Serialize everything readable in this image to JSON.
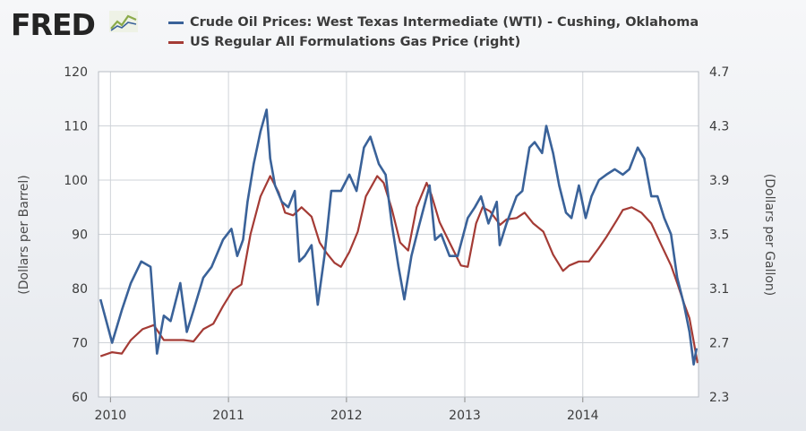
{
  "brand": {
    "logo_text": "FRED",
    "logo_icon": "line-chart-icon"
  },
  "colors": {
    "wti": "#3a6299",
    "gas": "#a43b35",
    "grid": "#cfd3d8",
    "plot_bg": "#ffffff"
  },
  "chart_data": {
    "type": "line",
    "series": [
      {
        "name": "Crude Oil Prices: West Texas Intermediate (WTI) - Cushing, Oklahoma",
        "axis": "left",
        "x": [
          "2009-12-01",
          "2010-01-06",
          "2010-02-05",
          "2010-03-05",
          "2010-04-06",
          "2010-05-05",
          "2010-05-25",
          "2010-06-15",
          "2010-07-06",
          "2010-08-05",
          "2010-08-25",
          "2010-09-15",
          "2010-10-15",
          "2010-11-10",
          "2010-12-15",
          "2011-01-10",
          "2011-01-28",
          "2011-02-15",
          "2011-03-01",
          "2011-03-20",
          "2011-04-10",
          "2011-04-29",
          "2011-05-10",
          "2011-05-25",
          "2011-06-15",
          "2011-07-05",
          "2011-07-25",
          "2011-08-08",
          "2011-08-25",
          "2011-09-15",
          "2011-10-04",
          "2011-10-25",
          "2011-11-15",
          "2011-12-15",
          "2012-01-10",
          "2012-02-01",
          "2012-02-24",
          "2012-03-15",
          "2012-04-10",
          "2012-05-01",
          "2012-05-20",
          "2012-06-10",
          "2012-06-28",
          "2012-07-20",
          "2012-08-10",
          "2012-09-14",
          "2012-10-01",
          "2012-10-20",
          "2012-11-15",
          "2012-12-10",
          "2013-01-10",
          "2013-02-01",
          "2013-02-20",
          "2013-03-15",
          "2013-04-10",
          "2013-04-19",
          "2013-05-10",
          "2013-06-10",
          "2013-06-28",
          "2013-07-20",
          "2013-08-05",
          "2013-08-28",
          "2013-09-10",
          "2013-10-01",
          "2013-10-20",
          "2013-11-10",
          "2013-11-27",
          "2013-12-20",
          "2014-01-10",
          "2014-01-28",
          "2014-02-20",
          "2014-03-15",
          "2014-04-10",
          "2014-05-05",
          "2014-05-25",
          "2014-06-20",
          "2014-07-10",
          "2014-08-01",
          "2014-08-20",
          "2014-09-10",
          "2014-10-01",
          "2014-10-20",
          "2014-11-10",
          "2014-11-27",
          "2014-12-10",
          "2014-12-19"
        ],
        "values": [
          78,
          70,
          76,
          81,
          85,
          84,
          68,
          75,
          74,
          81,
          72,
          76,
          82,
          84,
          89,
          91,
          86,
          89,
          96,
          103,
          109,
          113,
          104,
          99,
          96,
          95,
          98,
          85,
          86,
          88,
          77,
          86,
          98,
          98,
          101,
          98,
          106,
          108,
          103,
          101,
          92,
          84,
          78,
          86,
          91,
          99,
          89,
          90,
          86,
          86,
          93,
          95,
          97,
          92,
          96,
          88,
          92,
          97,
          98,
          106,
          107,
          105,
          110,
          105,
          99,
          94,
          93,
          99,
          93,
          97,
          100,
          101,
          102,
          101,
          102,
          106,
          104,
          97,
          97,
          93,
          90,
          82,
          77,
          72,
          66,
          69
        ]
      },
      {
        "name": "US Regular All Formulations Gas Price (right)",
        "axis": "right",
        "x": [
          "2009-12-01",
          "2010-01-06",
          "2010-02-05",
          "2010-03-05",
          "2010-04-10",
          "2010-05-15",
          "2010-06-15",
          "2010-07-15",
          "2010-08-15",
          "2010-09-15",
          "2010-10-15",
          "2010-11-15",
          "2010-12-15",
          "2011-01-15",
          "2011-02-10",
          "2011-03-10",
          "2011-04-10",
          "2011-05-10",
          "2011-06-05",
          "2011-06-25",
          "2011-07-20",
          "2011-08-15",
          "2011-09-15",
          "2011-10-10",
          "2011-11-01",
          "2011-11-25",
          "2011-12-15",
          "2012-01-10",
          "2012-02-05",
          "2012-03-01",
          "2012-04-05",
          "2012-04-25",
          "2012-05-20",
          "2012-06-15",
          "2012-07-10",
          "2012-08-05",
          "2012-09-05",
          "2012-09-20",
          "2012-10-15",
          "2012-11-15",
          "2012-12-20",
          "2013-01-10",
          "2013-02-05",
          "2013-02-25",
          "2013-03-20",
          "2013-04-20",
          "2013-05-10",
          "2013-06-10",
          "2013-07-05",
          "2013-08-01",
          "2013-09-01",
          "2013-10-01",
          "2013-11-01",
          "2013-11-20",
          "2013-12-20",
          "2014-01-20",
          "2014-02-20",
          "2014-03-15",
          "2014-04-15",
          "2014-05-05",
          "2014-06-01",
          "2014-07-01",
          "2014-08-01",
          "2014-09-01",
          "2014-10-01",
          "2014-10-20",
          "2014-11-10",
          "2014-11-27",
          "2014-12-10",
          "2014-12-22"
        ],
        "values": [
          2.6,
          2.63,
          2.62,
          2.72,
          2.8,
          2.83,
          2.72,
          2.72,
          2.72,
          2.71,
          2.8,
          2.84,
          2.97,
          3.09,
          3.13,
          3.5,
          3.78,
          3.93,
          3.81,
          3.66,
          3.64,
          3.7,
          3.63,
          3.44,
          3.36,
          3.29,
          3.26,
          3.37,
          3.52,
          3.78,
          3.93,
          3.88,
          3.69,
          3.44,
          3.38,
          3.7,
          3.88,
          3.79,
          3.59,
          3.44,
          3.27,
          3.26,
          3.58,
          3.7,
          3.67,
          3.57,
          3.61,
          3.62,
          3.66,
          3.58,
          3.52,
          3.35,
          3.23,
          3.27,
          3.3,
          3.3,
          3.4,
          3.48,
          3.6,
          3.68,
          3.7,
          3.66,
          3.58,
          3.42,
          3.27,
          3.14,
          2.99,
          2.88,
          2.71,
          2.55
        ]
      }
    ],
    "x_ticks": [
      "2010",
      "2011",
      "2012",
      "2013",
      "2014"
    ],
    "y_left": {
      "label": "(Dollars per Barrel)",
      "ticks": [
        60,
        70,
        80,
        90,
        100,
        110,
        120
      ],
      "lim": [
        60,
        120
      ]
    },
    "y_right": {
      "label": "(Dollars per Gallon)",
      "ticks": [
        2.3,
        2.7,
        3.1,
        3.5,
        3.9,
        4.3,
        4.7
      ],
      "lim": [
        2.3,
        4.7
      ]
    },
    "grid": true,
    "legend_placement": "top"
  }
}
